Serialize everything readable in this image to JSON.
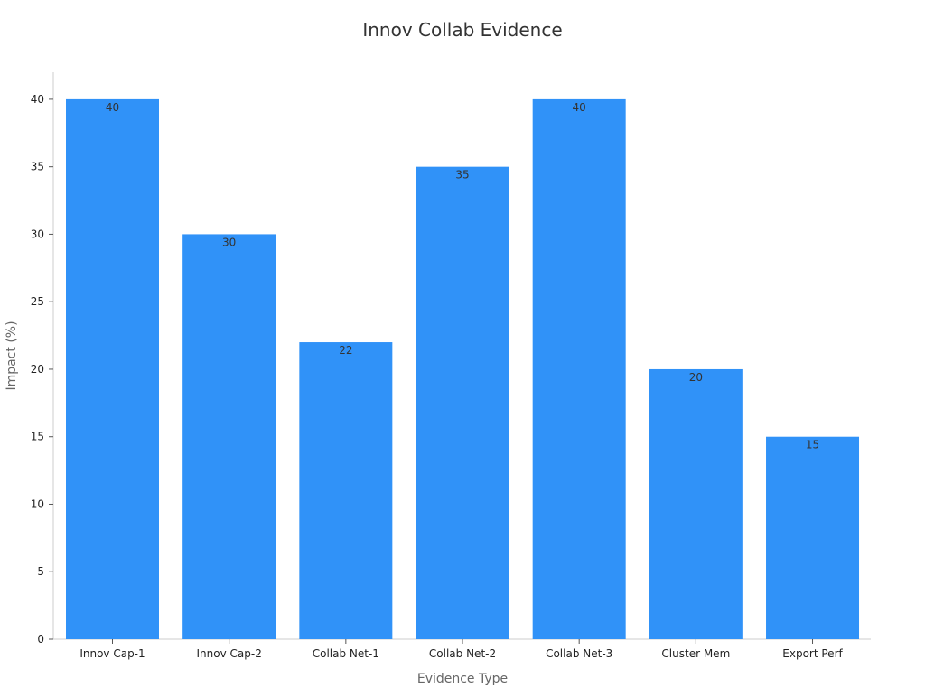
{
  "chart_data": {
    "type": "bar",
    "title": "Innov Collab Evidence",
    "xlabel": "Evidence Type",
    "ylabel": "Impact (%)",
    "categories": [
      "Innov Cap-1",
      "Innov Cap-2",
      "Collab Net-1",
      "Collab Net-2",
      "Collab Net-3",
      "Cluster Mem",
      "Export Perf"
    ],
    "values": [
      40,
      30,
      22,
      35,
      40,
      20,
      15
    ],
    "ylim": [
      0,
      42
    ],
    "yticks": [
      0,
      5,
      10,
      15,
      20,
      25,
      30,
      35,
      40
    ],
    "bar_color": "#3092f8",
    "data_labels": true,
    "grid": false,
    "legend": "none"
  }
}
